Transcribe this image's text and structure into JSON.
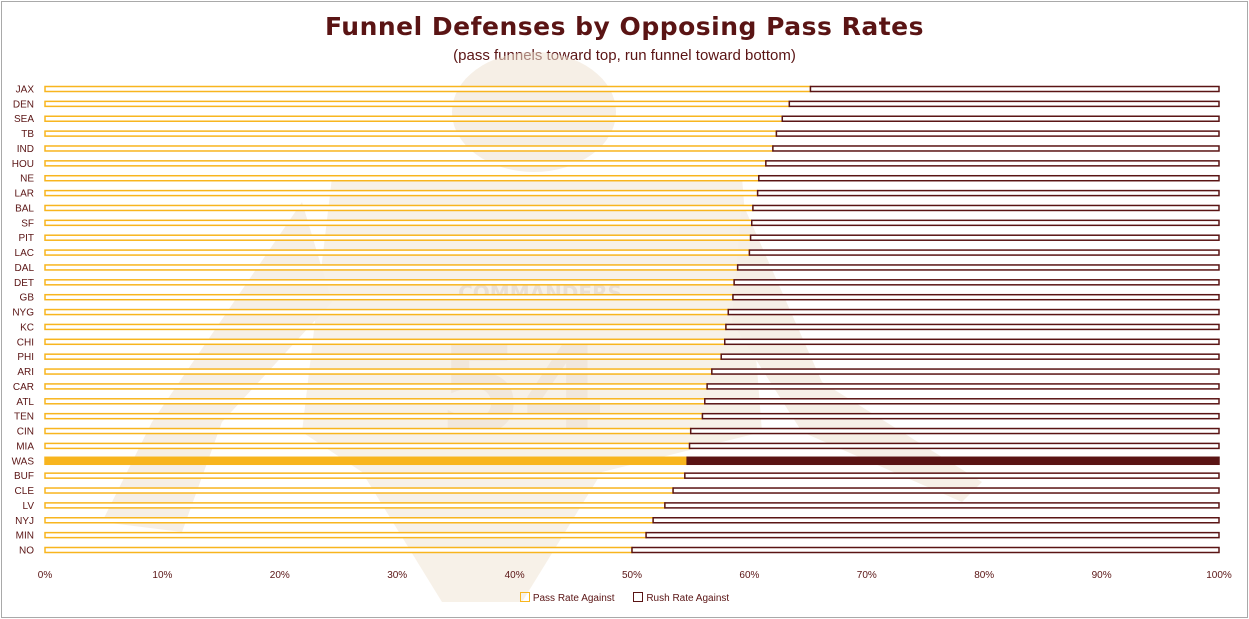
{
  "colors": {
    "pass": "#f8b51e",
    "rush": "#5a1414",
    "text": "#5a1414",
    "watermark": "#f1e4d2"
  },
  "chart_data": {
    "type": "bar",
    "orientation": "horizontal",
    "stacked": true,
    "title": "Funnel Defenses by Opposing Pass Rates",
    "subtitle": "(pass funnels toward top, run funnel toward bottom)",
    "highlight": "WAS",
    "categories": [
      "JAX",
      "DEN",
      "SEA",
      "TB",
      "IND",
      "HOU",
      "NE",
      "LAR",
      "BAL",
      "SF",
      "PIT",
      "LAC",
      "DAL",
      "DET",
      "GB",
      "NYG",
      "KC",
      "CHI",
      "PHI",
      "ARI",
      "CAR",
      "ATL",
      "TEN",
      "CIN",
      "MIA",
      "WAS",
      "BUF",
      "CLE",
      "LV",
      "NYJ",
      "MIN",
      "NO"
    ],
    "series": [
      {
        "name": "Pass Rate Against",
        "values": [
          65.2,
          63.4,
          62.8,
          62.3,
          62.0,
          61.4,
          60.8,
          60.7,
          60.3,
          60.2,
          60.1,
          60.0,
          59.0,
          58.7,
          58.6,
          58.2,
          58.0,
          57.9,
          57.6,
          56.8,
          56.4,
          56.2,
          56.0,
          55.0,
          54.9,
          54.7,
          54.5,
          53.5,
          52.8,
          51.8,
          51.2,
          50.0
        ]
      },
      {
        "name": "Rush Rate Against",
        "values": [
          34.8,
          36.6,
          37.2,
          37.7,
          38.0,
          38.6,
          39.2,
          39.3,
          39.7,
          39.8,
          39.9,
          40.0,
          41.0,
          41.3,
          41.4,
          41.8,
          42.0,
          42.1,
          42.4,
          43.2,
          43.6,
          43.8,
          44.0,
          45.0,
          45.1,
          45.3,
          45.5,
          46.5,
          47.2,
          48.2,
          48.8,
          50.0
        ]
      }
    ],
    "xlim": [
      0,
      100
    ],
    "xticks": [
      0,
      10,
      20,
      30,
      40,
      50,
      60,
      70,
      80,
      90,
      100
    ],
    "xtick_labels": [
      "0%",
      "10%",
      "20%",
      "30%",
      "40%",
      "50%",
      "60%",
      "70%",
      "80%",
      "90%",
      "100%"
    ],
    "legend_position": "bottom"
  }
}
